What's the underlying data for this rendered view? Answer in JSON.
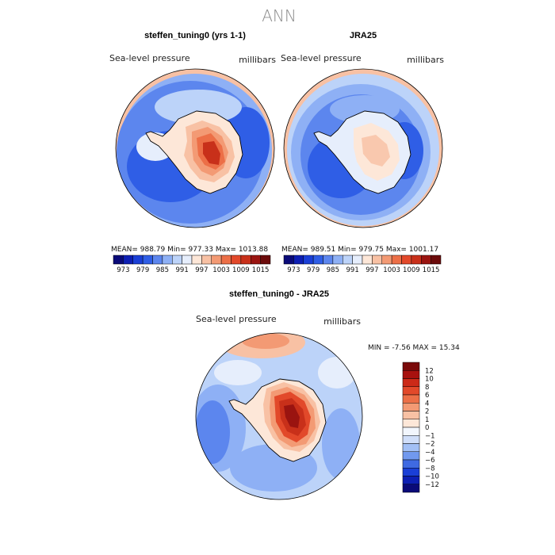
{
  "figure": {
    "title": "ANN"
  },
  "panels": [
    {
      "title": "steffen_tuning0 (yrs 1-1)",
      "variable": "Sea-level pressure",
      "units": "millibars",
      "stats": "MEAN= 988.79   Min= 977.33   Max= 1013.88"
    },
    {
      "title": "JRA25",
      "variable": "Sea-level pressure",
      "units": "millibars",
      "stats": "MEAN= 989.51   Min= 979.75   Max= 1001.17"
    }
  ],
  "diff_panel": {
    "title": "steffen_tuning0 - JRA25",
    "variable": "Sea-level pressure",
    "units": "millibars",
    "stats": "MIN =   -7.56 MAX =  15.34"
  },
  "colorbar_top": {
    "levels": [
      "973",
      "979",
      "985",
      "991",
      "997",
      "1003",
      "1009",
      "1015"
    ],
    "colors": [
      "#0a0a78",
      "#0d1fb3",
      "#1a3fd6",
      "#2f5ee6",
      "#5c86ee",
      "#8eb0f5",
      "#bcd3f9",
      "#e6eefc",
      "#fde7d8",
      "#f8c1a4",
      "#f39a74",
      "#ec6f47",
      "#e2492a",
      "#c8301a",
      "#9a1410",
      "#6b0a0a"
    ]
  },
  "colorbar_diff": {
    "levels": [
      "12",
      "10",
      "8",
      "6",
      "4",
      "2",
      "1",
      "0",
      "−1",
      "−2",
      "−4",
      "−6",
      "−8",
      "−10",
      "−12"
    ],
    "colors": [
      "#7a0a0a",
      "#a8120f",
      "#cc2a18",
      "#e2492a",
      "#ec6f47",
      "#f39a74",
      "#f8c1a4",
      "#fde7d8",
      "#f2f6fd",
      "#d0def9",
      "#a3c0f5",
      "#7199ee",
      "#3f6ae2",
      "#1a3fd6",
      "#0d1fb3",
      "#0a0a78"
    ]
  }
}
